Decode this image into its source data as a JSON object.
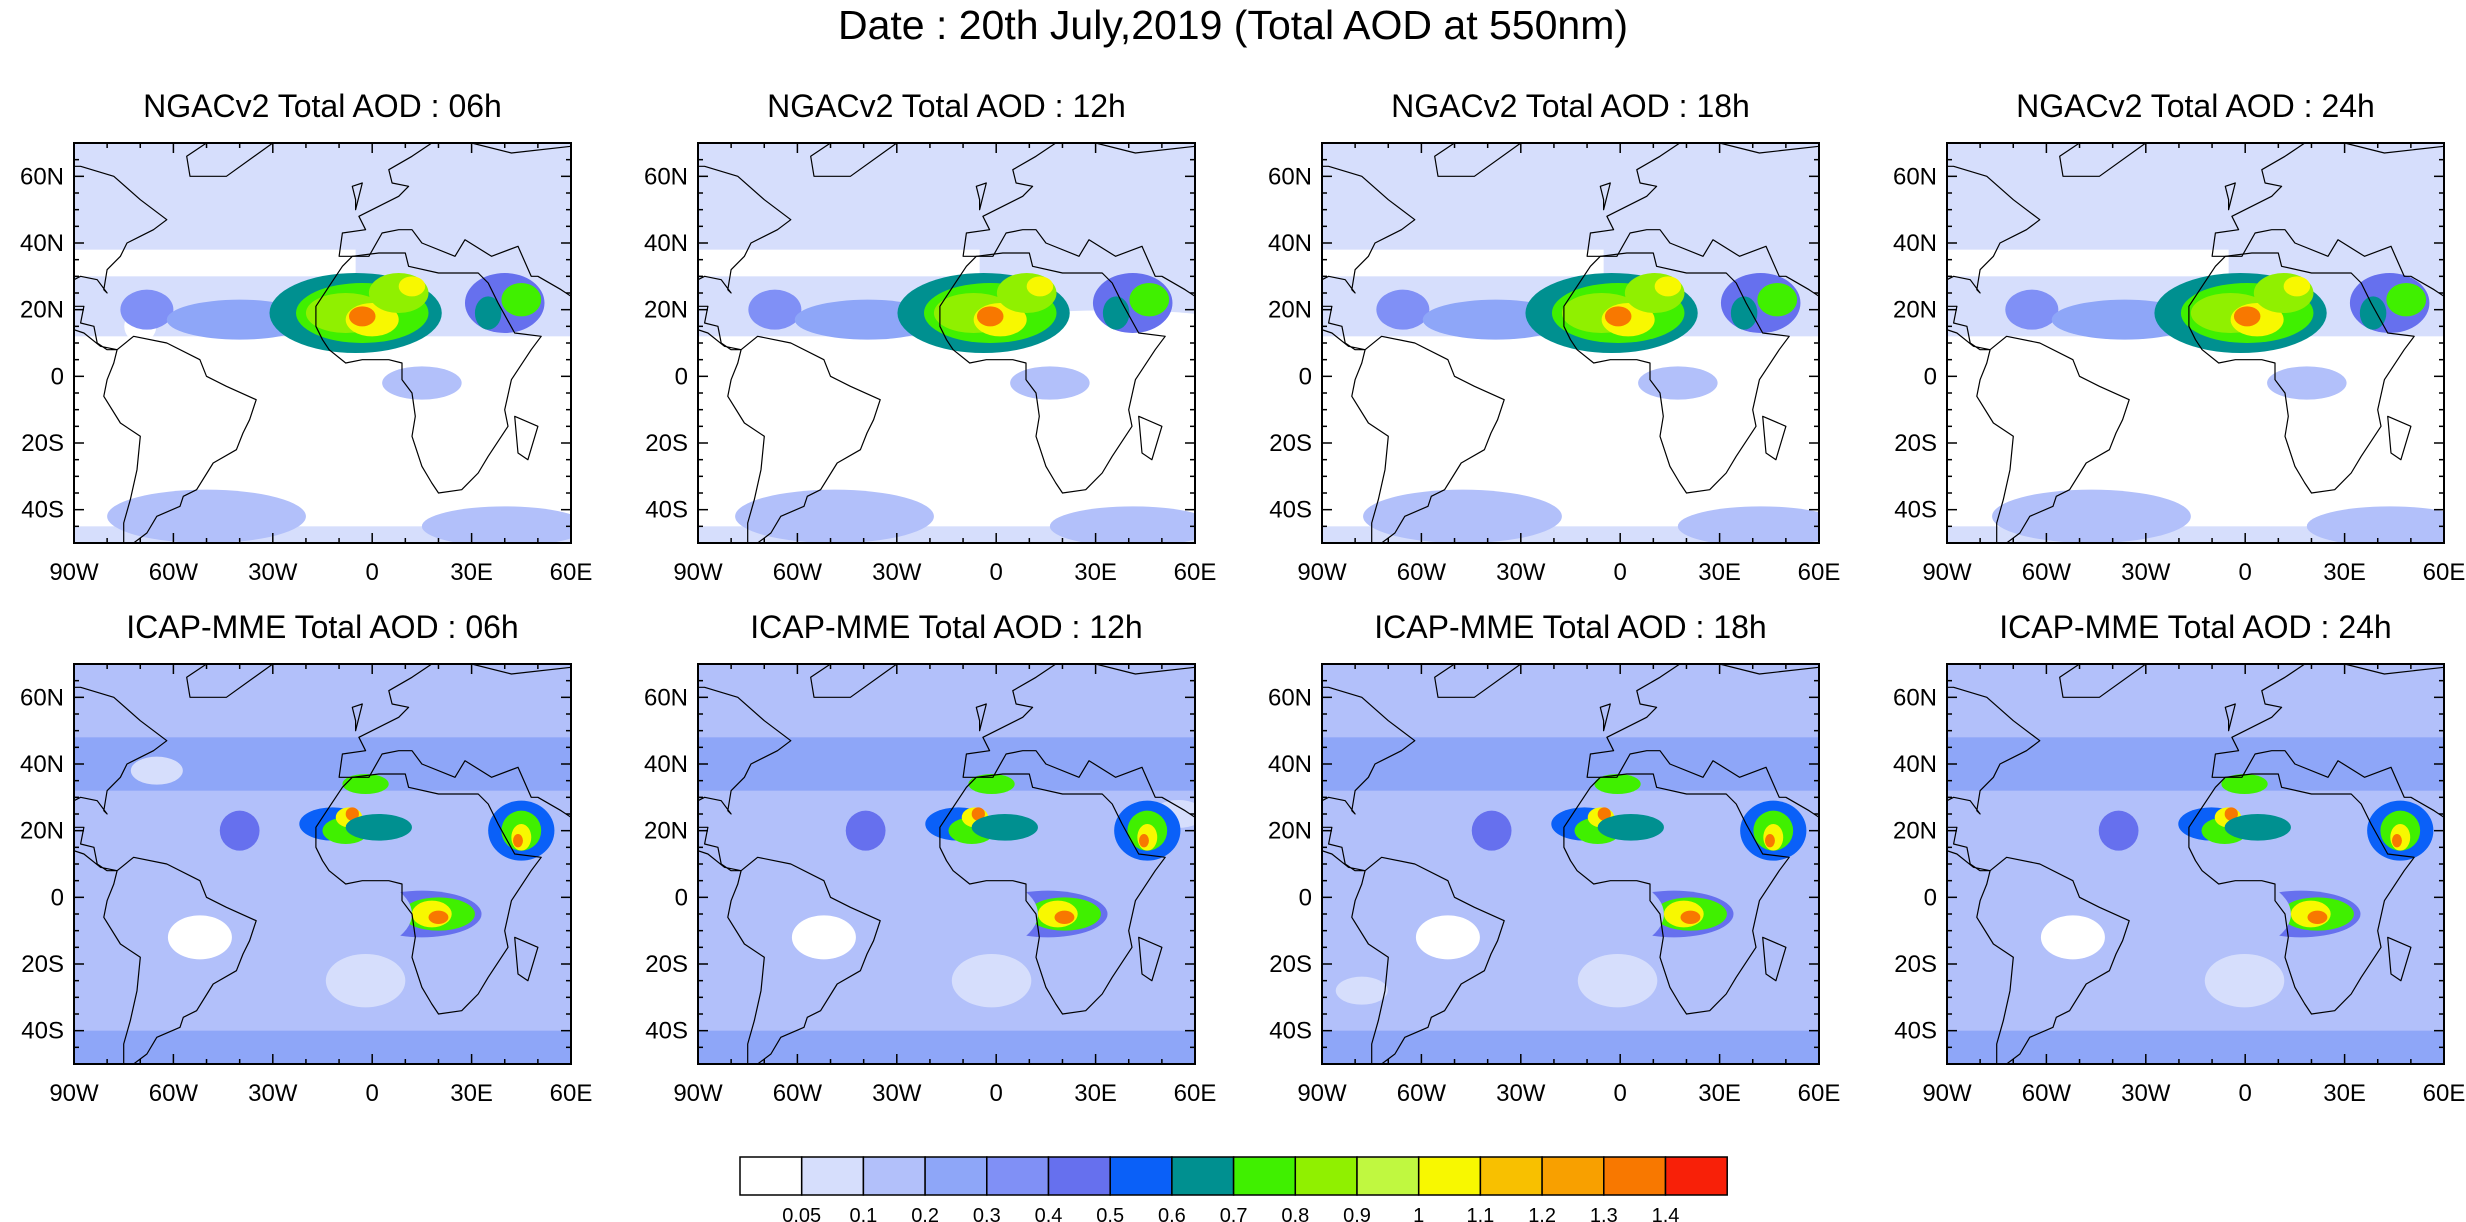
{
  "title": "Date : 20th July,2019 (Total AOD at 550nm)",
  "rows": [
    {
      "model": "NGACv2",
      "panels": [
        {
          "title": "NGACv2 Total AOD : 06h"
        },
        {
          "title": "NGACv2 Total AOD : 12h"
        },
        {
          "title": "NGACv2 Total AOD : 18h"
        },
        {
          "title": "NGACv2 Total AOD : 24h"
        }
      ]
    },
    {
      "model": "ICAP-MME",
      "panels": [
        {
          "title": "ICAP-MME Total AOD : 06h"
        },
        {
          "title": "ICAP-MME Total AOD : 12h"
        },
        {
          "title": "ICAP-MME Total AOD : 18h"
        },
        {
          "title": "ICAP-MME Total AOD : 24h"
        }
      ]
    }
  ],
  "map_extent": {
    "lon": [
      -90,
      60
    ],
    "lat": [
      -50,
      70
    ]
  },
  "lat_labels": [
    {
      "value": 60,
      "label": "60N"
    },
    {
      "value": 40,
      "label": "40N"
    },
    {
      "value": 20,
      "label": "20N"
    },
    {
      "value": 0,
      "label": "0"
    },
    {
      "value": -20,
      "label": "20S"
    },
    {
      "value": -40,
      "label": "40S"
    }
  ],
  "lon_labels": [
    {
      "value": -90,
      "label": "90W"
    },
    {
      "value": -60,
      "label": "60W"
    },
    {
      "value": -30,
      "label": "30W"
    },
    {
      "value": 0,
      "label": "0"
    },
    {
      "value": 30,
      "label": "30E"
    },
    {
      "value": 60,
      "label": "60E"
    }
  ],
  "colorbar": {
    "colors": [
      "#ffffff",
      "#d6defc",
      "#b2c0fa",
      "#8ea6f8",
      "#8090f6",
      "#6670ee",
      "#0a60f8",
      "#009090",
      "#40f000",
      "#90f000",
      "#c0f840",
      "#f8f800",
      "#f8c000",
      "#f8a000",
      "#f87800",
      "#f82008"
    ],
    "labels": [
      "0.05",
      "0.1",
      "0.2",
      "0.3",
      "0.4",
      "0.5",
      "0.6",
      "0.7",
      "0.8",
      "0.9",
      "1",
      "1.1",
      "1.2",
      "1.3",
      "1.4"
    ]
  }
}
